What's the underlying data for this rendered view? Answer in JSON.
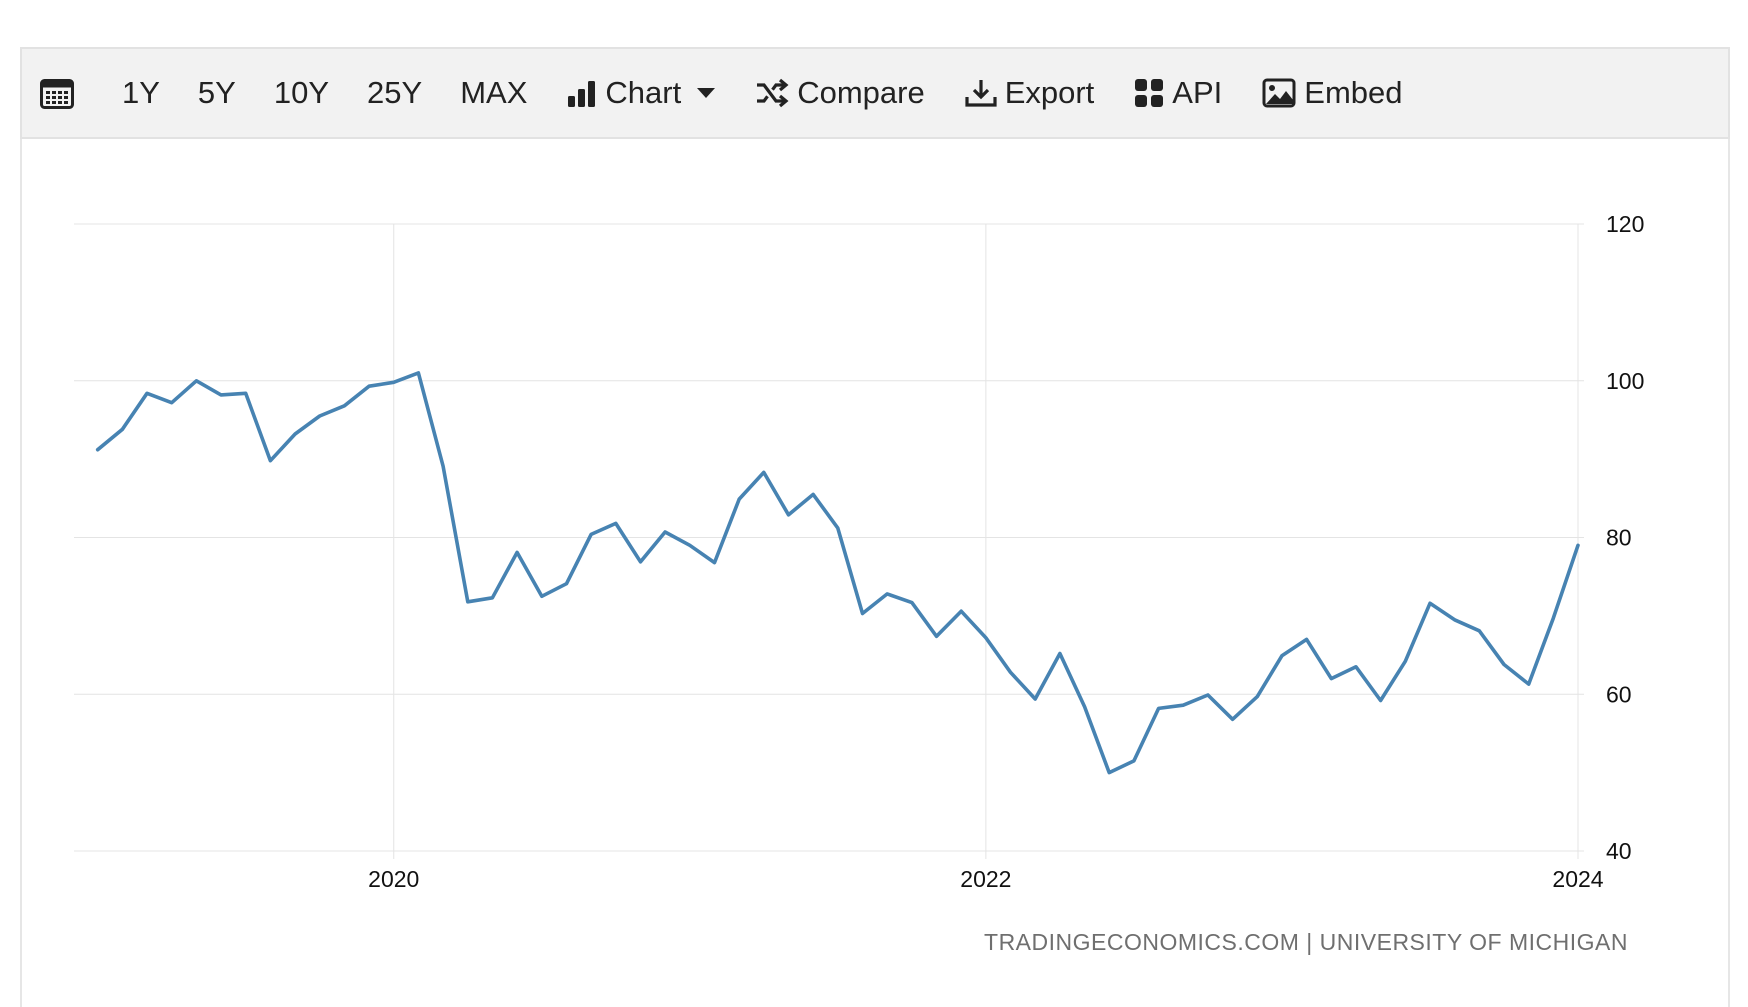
{
  "toolbar": {
    "calendar_icon": "calendar-icon",
    "ranges": [
      "1Y",
      "5Y",
      "10Y",
      "25Y",
      "MAX"
    ],
    "chart_label": "Chart",
    "chart_icon": "bar-chart-icon",
    "compare_label": "Compare",
    "compare_icon": "shuffle-icon",
    "export_label": "Export",
    "export_icon": "download-icon",
    "api_label": "API",
    "api_icon": "grid-icon",
    "embed_label": "Embed",
    "embed_icon": "image-icon"
  },
  "source_text": "TRADINGECONOMICS.COM | UNIVERSITY OF MICHIGAN",
  "colors": {
    "line": "#4783b2",
    "grid": "#e4e4e4",
    "toolbar_bg": "#f2f2f2",
    "source_text": "#6f6f6f"
  },
  "chart_data": {
    "type": "line",
    "title": "",
    "xlabel": "",
    "ylabel": "",
    "x_start": 2019.0,
    "x_step_months": 1,
    "xlim": [
      2018.92,
      2024.0
    ],
    "ylim": [
      40,
      120
    ],
    "y_ticks": [
      40,
      60,
      80,
      100,
      120
    ],
    "x_ticks": [
      2020,
      2022,
      2024
    ],
    "x_tick_labels": [
      "2020",
      "2022",
      "2024"
    ],
    "y_axis_position": "right",
    "grid": true,
    "legend": "none",
    "series": [
      {
        "values": [
          91.2,
          93.8,
          98.4,
          97.2,
          100.0,
          98.2,
          98.4,
          89.8,
          93.2,
          95.5,
          96.8,
          99.3,
          99.8,
          101.0,
          89.1,
          71.8,
          72.3,
          78.1,
          72.5,
          74.1,
          80.4,
          81.8,
          76.9,
          80.7,
          79.0,
          76.8,
          84.9,
          88.3,
          82.9,
          85.5,
          81.2,
          70.3,
          72.8,
          71.7,
          67.4,
          70.6,
          67.2,
          62.8,
          59.4,
          65.2,
          58.4,
          50.0,
          51.5,
          58.2,
          58.6,
          59.9,
          56.8,
          59.7,
          64.9,
          67.0,
          62.0,
          63.5,
          59.2,
          64.2,
          71.6,
          69.5,
          68.1,
          63.8,
          61.3,
          69.7,
          79.0
        ]
      }
    ]
  }
}
